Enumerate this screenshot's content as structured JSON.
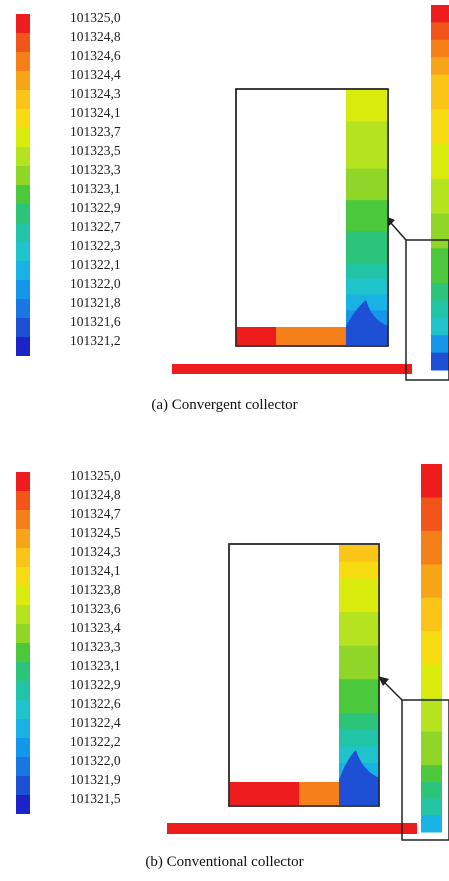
{
  "panel_a": {
    "caption": "(a) Convergent collector",
    "legend_values": [
      "101325,0",
      "101324,8",
      "101324,6",
      "101324,4",
      "101324,3",
      "101324,1",
      "101323,7",
      "101323,5",
      "101323,3",
      "101323,1",
      "101322,9",
      "101322,7",
      "101322,3",
      "101322,1",
      "101322,0",
      "101321,8",
      "101321,6",
      "101321,2"
    ]
  },
  "panel_b": {
    "caption": "(b) Conventional collector",
    "legend_values": [
      "101325,0",
      "101324,8",
      "101324,7",
      "101324,5",
      "101324,3",
      "101324,1",
      "101323,8",
      "101323,6",
      "101323,4",
      "101323,3",
      "101323,1",
      "101322,9",
      "101322,6",
      "101322,4",
      "101322,2",
      "101322,0",
      "101321,9",
      "101321,5"
    ]
  },
  "colormap": [
    "#ee1c1c",
    "#f2551a",
    "#f5801a",
    "#f7a418",
    "#fac516",
    "#f6dc10",
    "#d9ec0e",
    "#b5e31f",
    "#8fd628",
    "#4cc83c",
    "#2bc47a",
    "#22c4a8",
    "#1ec3cc",
    "#18b2e4",
    "#1497ea",
    "#1a76e2",
    "#1e50d6",
    "#1c24c8"
  ]
}
